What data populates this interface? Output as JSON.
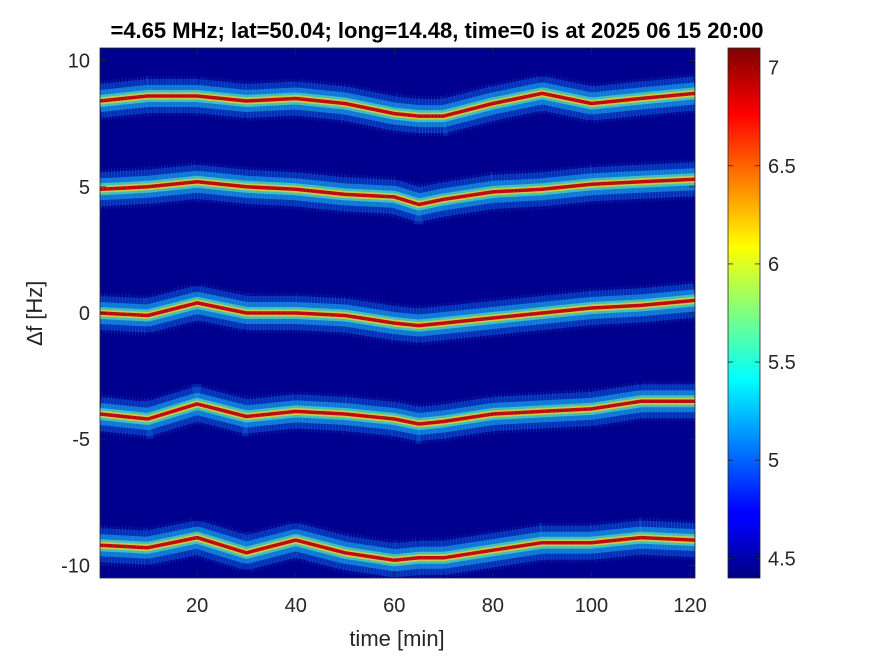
{
  "chart_data": {
    "type": "heatmap",
    "title": "=4.65 MHz;  lat=50.04; long=14.48, time=0 is at 2025 06 15 20:00",
    "xlabel": "time [min]",
    "ylabel": "∆f [Hz]",
    "xlim": [
      0.3,
      121
    ],
    "ylim": [
      -10.5,
      10.5
    ],
    "x_ticks": [
      20,
      40,
      60,
      80,
      100,
      120
    ],
    "x_tick_labels": [
      "20",
      "40",
      "60",
      "80",
      "100",
      "120"
    ],
    "y_ticks": [
      10,
      5,
      0,
      -5,
      -10
    ],
    "y_tick_labels": [
      "10",
      "5",
      "0",
      "-5",
      "-10"
    ],
    "colorbar": {
      "colormap": "jet",
      "range": [
        4.4,
        7.1
      ],
      "ticks": [
        7,
        6.5,
        6,
        5.5,
        5,
        4.5
      ],
      "tick_labels": [
        "7",
        "6.5",
        "6",
        "5.5",
        "5",
        "4.5"
      ]
    },
    "background_value": 4.5,
    "grid": false,
    "series": [
      {
        "x": [
          0.3,
          10,
          20,
          30,
          40,
          50,
          60,
          65,
          70,
          80,
          90,
          100,
          110,
          121
        ],
        "y": [
          8.4,
          8.6,
          8.6,
          8.4,
          8.5,
          8.3,
          7.9,
          7.8,
          7.8,
          8.3,
          8.7,
          8.3,
          8.5,
          8.7
        ]
      },
      {
        "x": [
          0.3,
          10,
          20,
          30,
          40,
          50,
          60,
          65,
          70,
          80,
          90,
          100,
          110,
          121
        ],
        "y": [
          4.9,
          5.0,
          5.2,
          5.0,
          4.9,
          4.7,
          4.6,
          4.3,
          4.5,
          4.8,
          4.9,
          5.1,
          5.2,
          5.3
        ]
      },
      {
        "x": [
          0.3,
          10,
          20,
          30,
          40,
          50,
          60,
          65,
          70,
          80,
          90,
          100,
          110,
          121
        ],
        "y": [
          0.0,
          -0.1,
          0.4,
          0.0,
          0.0,
          -0.1,
          -0.4,
          -0.5,
          -0.4,
          -0.2,
          0.0,
          0.2,
          0.3,
          0.5
        ]
      },
      {
        "x": [
          0.3,
          10,
          20,
          30,
          40,
          50,
          60,
          65,
          70,
          80,
          90,
          100,
          110,
          121
        ],
        "y": [
          -4.0,
          -4.2,
          -3.6,
          -4.1,
          -3.9,
          -4.0,
          -4.2,
          -4.4,
          -4.3,
          -4.0,
          -3.9,
          -3.8,
          -3.5,
          -3.5
        ]
      },
      {
        "x": [
          0.3,
          10,
          20,
          30,
          40,
          50,
          60,
          65,
          70,
          80,
          90,
          100,
          110,
          121
        ],
        "y": [
          -9.2,
          -9.3,
          -8.9,
          -9.5,
          -9.0,
          -9.5,
          -9.8,
          -9.7,
          -9.7,
          -9.4,
          -9.1,
          -9.1,
          -8.9,
          -9.0
        ]
      }
    ]
  }
}
